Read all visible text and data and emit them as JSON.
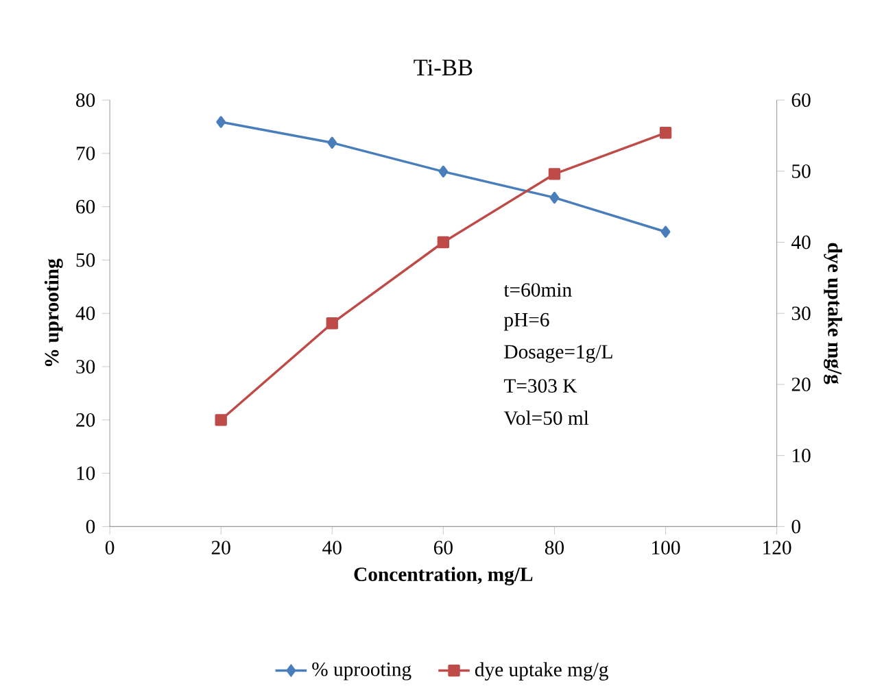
{
  "chart_data": {
    "type": "line",
    "title": "Ti-BB",
    "xlabel": "Concentration, mg/L",
    "ylabel": "% uprooting",
    "y2label": "dye uptake mg/g",
    "x": [
      20,
      40,
      60,
      80,
      100
    ],
    "series": [
      {
        "name": "% uprooting",
        "color": "#4a7ebb",
        "marker": "diamond",
        "values": [
          75.9,
          72.0,
          66.6,
          61.7,
          55.3
        ]
      },
      {
        "name": "dye uptake mg/g",
        "color": "#be4b48",
        "marker": "square",
        "axis": "y2",
        "values": [
          15.0,
          28.6,
          40.0,
          49.6,
          55.4
        ]
      }
    ],
    "xlim": [
      0,
      120
    ],
    "xticks": [
      0,
      20,
      40,
      60,
      80,
      100,
      120
    ],
    "ylim": [
      0,
      80
    ],
    "yticks": [
      0,
      10,
      20,
      30,
      40,
      50,
      60,
      70,
      80
    ],
    "y2lim": [
      0,
      60
    ],
    "y2ticks": [
      0,
      10,
      20,
      30,
      40,
      50,
      60
    ],
    "annotations": [
      "t=60min",
      "pH=6",
      "Dosage=1g/L",
      "T=303 K",
      "Vol=50 ml"
    ],
    "legend": "bottom",
    "grid": false
  }
}
